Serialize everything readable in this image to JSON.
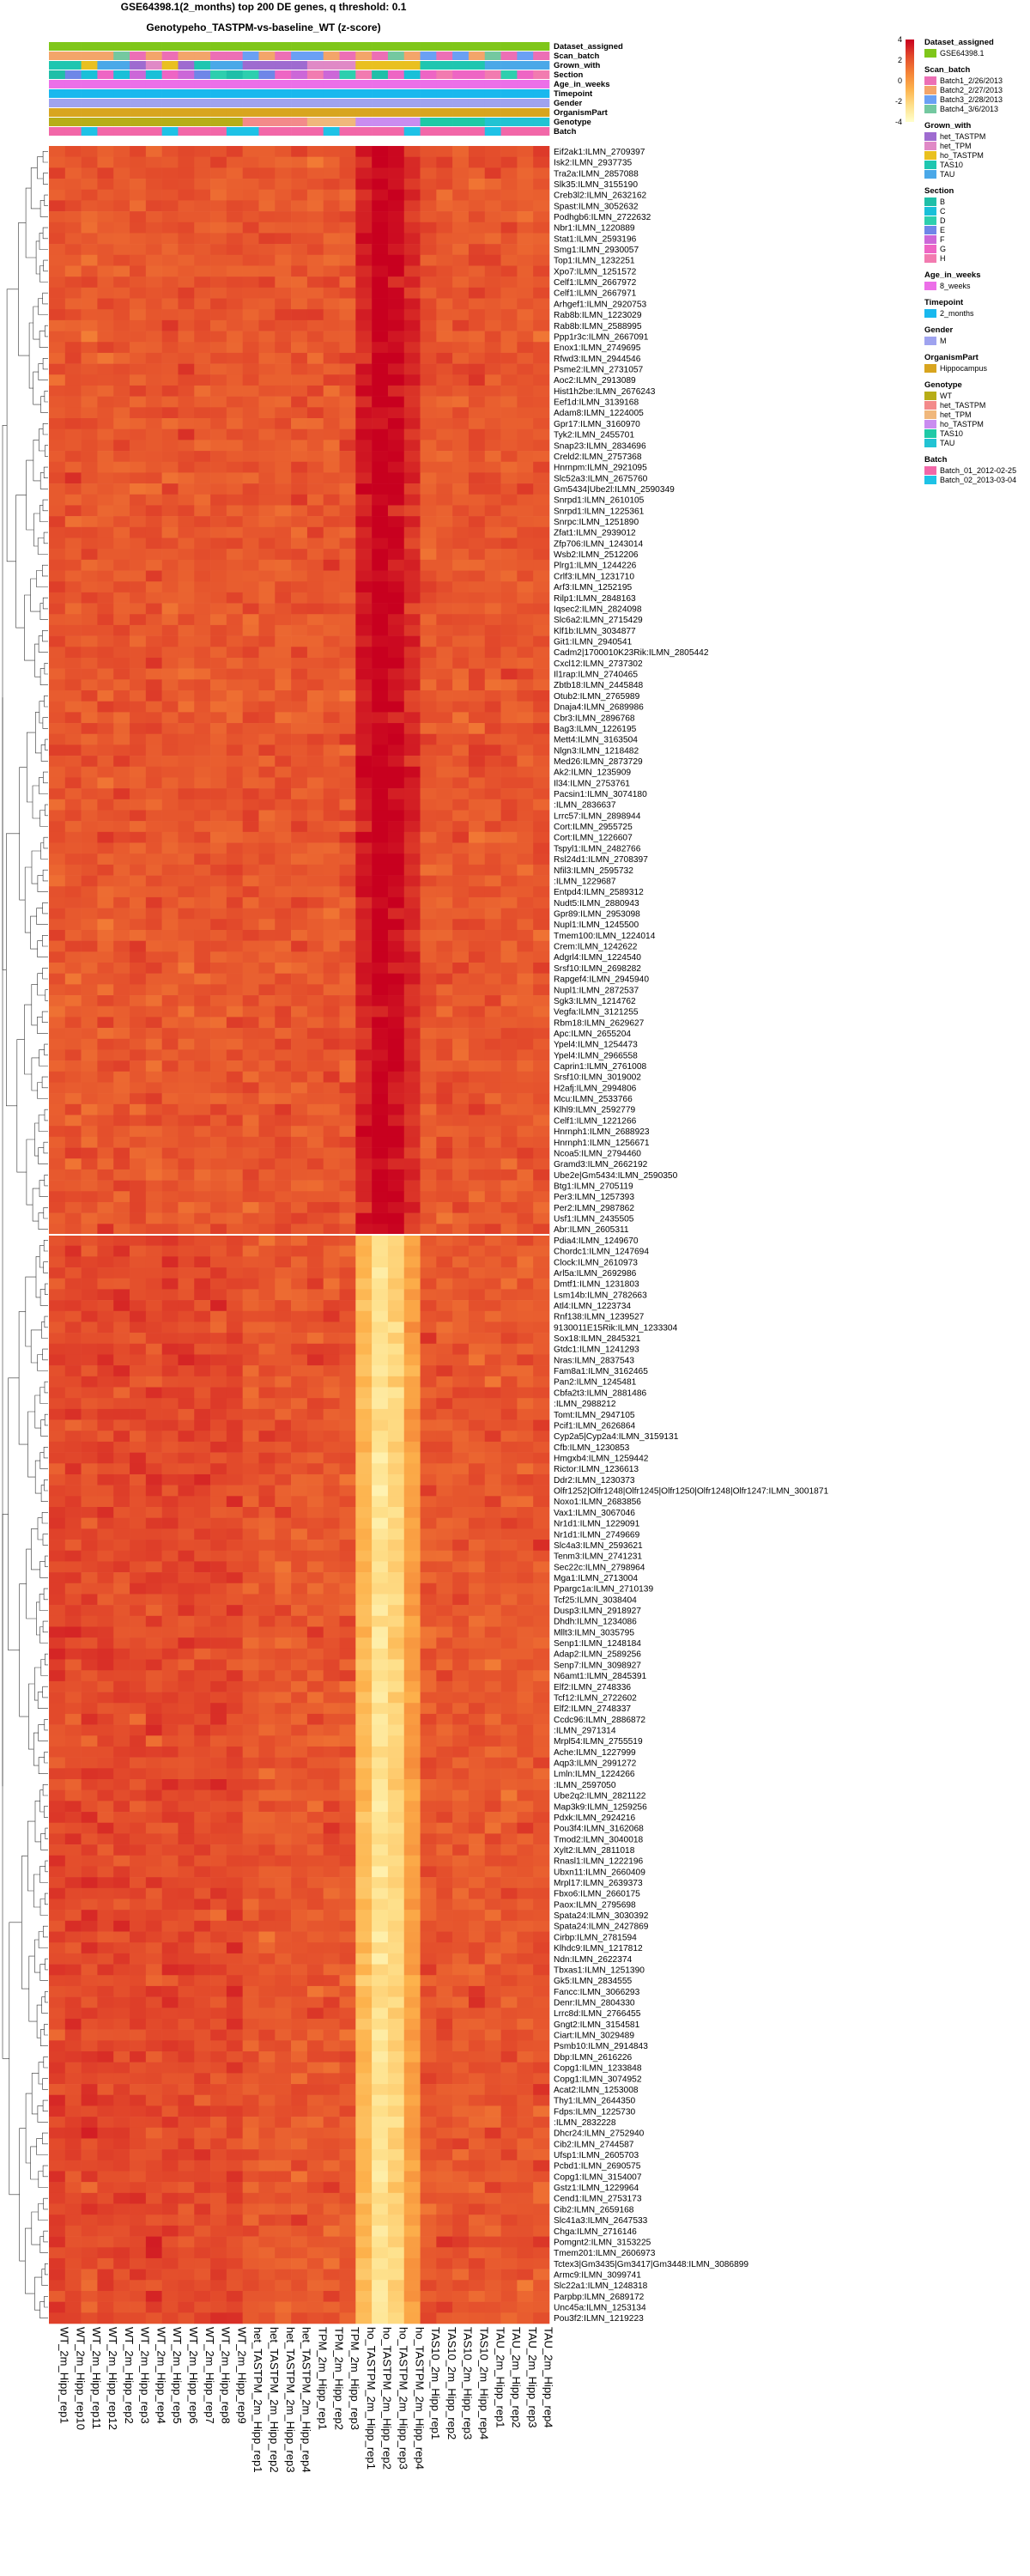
{
  "chart_data": {
    "type": "heatmap",
    "title": "GSE64398.1(2_months) top 200 DE genes, q threshold: 0.1",
    "subtitle": "Genotypeho_TASTPM-vs-baseline_WT  (z-score)",
    "color_scale": {
      "ticks": [
        4,
        2,
        0,
        -2,
        -4
      ],
      "range": [
        -4,
        4
      ],
      "colors": [
        "#c8001f",
        "#e2492b",
        "#f48236",
        "#fdb24c",
        "#fee08b",
        "#ffffcc"
      ]
    },
    "samples": [
      "WT_2m_Hipp_rep1",
      "WT_2m_Hipp_rep10",
      "WT_2m_Hipp_rep11",
      "WT_2m_Hipp_rep12",
      "WT_2m_Hipp_rep2",
      "WT_2m_Hipp_rep3",
      "WT_2m_Hipp_rep4",
      "WT_2m_Hipp_rep5",
      "WT_2m_Hipp_rep6",
      "WT_2m_Hipp_rep7",
      "WT_2m_Hipp_rep8",
      "WT_2m_Hipp_rep9",
      "het_TASTPM_2m_Hipp_rep1",
      "het_TASTPM_2m_Hipp_rep2",
      "het_TASTPM_2m_Hipp_rep3",
      "het_TASTPM_2m_Hipp_rep4",
      "TPM_2m_Hipp_rep1",
      "TPM_2m_Hipp_rep2",
      "TPM_2m_Hipp_rep3",
      "ho_TASTPM_2m_Hipp_rep1",
      "ho_TASTPM_2m_Hipp_rep2",
      "ho_TASTPM_2m_Hipp_rep3",
      "ho_TASTPM_2m_Hipp_rep4",
      "TAS10_2m_Hipp_rep1",
      "TAS10_2m_Hipp_rep2",
      "TAS10_2m_Hipp_rep3",
      "TAS10_2m_Hipp_rep4",
      "TAU_2m_Hipp_rep1",
      "TAU_2m_Hipp_rep2",
      "TAU_2m_Hipp_rep3",
      "TAU_2m_Hipp_rep4"
    ],
    "sample_groups": [
      {
        "name": "WT",
        "cols": [
          0,
          1,
          2,
          3,
          4,
          5,
          6,
          7,
          8,
          9,
          10,
          11
        ]
      },
      {
        "name": "het_TASTPM",
        "cols": [
          12,
          13,
          14,
          15
        ]
      },
      {
        "name": "TPM",
        "cols": [
          16,
          17,
          18
        ]
      },
      {
        "name": "ho_TASTPM",
        "cols": [
          19,
          20,
          21,
          22
        ]
      },
      {
        "name": "TAS10",
        "cols": [
          23,
          24,
          25,
          26
        ]
      },
      {
        "name": "TAU",
        "cols": [
          27,
          28,
          29,
          30
        ]
      }
    ],
    "annotation_tracks": [
      {
        "name": "Dataset_assigned",
        "values": [
          "GSE64398.1"
        ]
      },
      {
        "name": "Scan_batch",
        "values": [
          "Batch1_2/26/2013",
          "Batch2_2/27/2013",
          "Batch3_2/28/2013",
          "Batch4_3/6/2013"
        ]
      },
      {
        "name": "Grown_with",
        "values": [
          "het_TASTPM",
          "het_TPM",
          "ho_TASTPM",
          "TAS10",
          "TAU"
        ]
      },
      {
        "name": "Section",
        "values": [
          "B",
          "C",
          "D",
          "E",
          "F",
          "G",
          "H"
        ]
      },
      {
        "name": "Age_in_weeks",
        "values": [
          "8_weeks"
        ]
      },
      {
        "name": "Timepoint",
        "values": [
          "2_months"
        ]
      },
      {
        "name": "Gender",
        "values": [
          "M"
        ]
      },
      {
        "name": "OrganismPart",
        "values": [
          "Hippocampus"
        ]
      },
      {
        "name": "Genotype",
        "values": [
          "WT",
          "het_TASTPM",
          "het_TPM",
          "ho_TASTPM",
          "TAS10",
          "TAU"
        ]
      },
      {
        "name": "Batch",
        "values": [
          "Batch_01_2012-02-25",
          "Batch_02_2013-03-04"
        ]
      }
    ],
    "row_split_after": 99,
    "genes_up": [
      "Eif2ak1:ILMN_2709397",
      "Isk2:ILMN_2937735",
      "Tra2a:ILMN_2857088",
      "Slk35:ILMN_3155190",
      "Creb3l2:ILMN_2632162",
      "Spast:ILMN_3052632",
      "Podhgb6:ILMN_2722632",
      "Nbr1:ILMN_1220889",
      "Stat1:ILMN_2593196",
      "Smg1:ILMN_2930057",
      "Top1:ILMN_1232251",
      "Xpo7:ILMN_1251572",
      "Celf1:ILMN_2667972",
      "Celf1:ILMN_2667971",
      "Arhgef1:ILMN_2920753",
      "Rab8b:ILMN_1223029",
      "Rab8b:ILMN_2588995",
      "Ppp1r3c:ILMN_2667091",
      "Enox1:ILMN_2749695",
      "Rfwd3:ILMN_2944546",
      "Psme2:ILMN_2731057",
      "Aoc2:ILMN_2913089",
      "Hist1h2be:ILMN_2676243",
      "Eef1d:ILMN_3139168",
      "Adam8:ILMN_1224005",
      "Gpr17:ILMN_3160970",
      "Tyk2:ILMN_2455701",
      "Snap23:ILMN_2834696",
      "Creld2:ILMN_2757368",
      "Hnrnpm:ILMN_2921095",
      "Slc52a3:ILMN_2675760",
      "Gm5434|Ube2l:ILMN_2590349",
      "Snrpd1:ILMN_2610105",
      "Snrpd1:ILMN_1225361",
      "Snrpc:ILMN_1251890",
      "Zfat1:ILMN_2939012",
      "Zfp706:ILMN_1243014",
      "Wsb2:ILMN_2512206",
      "Plrg1:ILMN_1244226",
      "Crlf3:ILMN_1231710",
      "Arf3:ILMN_1252195",
      "Rilp1:ILMN_2848163",
      "Iqsec2:ILMN_2824098",
      "Slc6a2:ILMN_2715429",
      "Klf1b:ILMN_3034877",
      "Git1:ILMN_2940541",
      "Cadm2|1700010K23Rik:ILMN_2805442",
      "Cxcl12:ILMN_2737302",
      "Il1rap:ILMN_2740465",
      "Zbtb18:ILMN_2445848",
      "Otub2:ILMN_2765989",
      "Dnaja4:ILMN_2689986",
      "Cbr3:ILMN_2896768",
      "Bag3:ILMN_1226195",
      "Mett4:ILMN_3163504",
      "Nlgn3:ILMN_1218482",
      "Med26:ILMN_2873729",
      "Ak2:ILMN_1235909",
      "Il34:ILMN_2753761",
      "Pacsin1:ILMN_3074180",
      ":ILMN_2836637",
      "Lrrc57:ILMN_2898944",
      "Cort:ILMN_2955725",
      "Cort:ILMN_1226607",
      "Tspyl1:ILMN_2482766",
      "Rsl24d1:ILMN_2708397",
      "Nfil3:ILMN_2595732",
      ":ILMN_1229687",
      "Entpd4:ILMN_2589312",
      "Nudt5:ILMN_2880943",
      "Gpr89:ILMN_2953098",
      "Nupl1:ILMN_1245500",
      "Tmem100:ILMN_1224014",
      "Crem:ILMN_1242622",
      "Adgrl4:ILMN_1224540",
      "Srsf10:ILMN_2698282",
      "Rapgef4:ILMN_2945940",
      "Nupl1:ILMN_2872537",
      "Sgk3:ILMN_1214762",
      "Vegfa:ILMN_3121255",
      "Rbm18:ILMN_2629627",
      "Apc:ILMN_2655204",
      "Ypel4:ILMN_1254473",
      "Ypel4:ILMN_2966558",
      "Caprin1:ILMN_2761008",
      "Srsf10:ILMN_3019002",
      "H2afj:ILMN_2994806",
      "Mcu:ILMN_2533766",
      "Klhl9:ILMN_2592779",
      "Celf1:ILMN_1221266",
      "Hnrnph1:ILMN_2688923",
      "Hnrnph1:ILMN_1256671",
      "Ncoa5:ILMN_2794460",
      "Gramd3:ILMN_2662192",
      "Ube2e|Gm5434:ILMN_2590350",
      "Btg1:ILMN_2705119",
      "Per3:ILMN_1257393",
      "Per2:ILMN_2987862",
      "Usf1:ILMN_2435505",
      "Abr:ILMN_2605311"
    ],
    "genes_down": [
      "Pdia4:ILMN_1249670",
      "Chordc1:ILMN_1247694",
      "Clock:ILMN_2610973",
      "Arl5a:ILMN_2692986",
      "Dmtf1:ILMN_1231803",
      "Lsm14b:ILMN_2782663",
      "Atl4:ILMN_1223734",
      "Rnf138:ILMN_1239527",
      "9130011E15Rik:ILMN_1233304",
      "Sox18:ILMN_2845321",
      "Gtdc1:ILMN_1241293",
      "Nras:ILMN_2837543",
      "Fam8a1:ILMN_3162465",
      "Pan2:ILMN_1245481",
      "Cbfa2t3:ILMN_2881486",
      ":ILMN_2988212",
      "Tomt:ILMN_2947105",
      "Pcif1:ILMN_2626864",
      "Cyp2a5|Cyp2a4:ILMN_3159131",
      "Cfb:ILMN_1230853",
      "Hmgxb4:ILMN_1259442",
      "Rictor:ILMN_1236613",
      "Ddr2:ILMN_1230373",
      "Olfr1252|Olfr1248|Olfr1245|Olfr1250|Olfr1248|Olfr1247:ILMN_3001871",
      "Noxo1:ILMN_2683856",
      "Vax1:ILMN_3067046",
      "Nr1d1:ILMN_1229091",
      "Nr1d1:ILMN_2749669",
      "Slc4a3:ILMN_2593621",
      "Tenm3:ILMN_2741231",
      "Sec22c:ILMN_2798964",
      "Mga1:ILMN_2713004",
      "Ppargc1a:ILMN_2710139",
      "Tcf25:ILMN_3038404",
      "Dusp3:ILMN_2918927",
      "Dhdh:ILMN_1234086",
      "Mllt3:ILMN_3035795",
      "Senp1:ILMN_1248184",
      "Adap2:ILMN_2589256",
      "Senp7:ILMN_3098927",
      "N6amt1:ILMN_2845391",
      "Elf2:ILMN_2748336",
      "Tcf12:ILMN_2722602",
      "Elf2:ILMN_2748337",
      "Ccdc96:ILMN_2886872",
      ":ILMN_2971314",
      "Mrpl54:ILMN_2755519",
      "Ache:ILMN_1227999",
      "Aqp3:ILMN_2991272",
      "Lmln:ILMN_1224266",
      ":ILMN_2597050",
      "Ube2q2:ILMN_2821122",
      "Map3k9:ILMN_1259256",
      "Pdxk:ILMN_2924216",
      "Pou3f4:ILMN_3162068",
      "Tmod2:ILMN_3040018",
      "Xylt2:ILMN_2811018",
      "Rnasl1:ILMN_1222196",
      "Ubxn11:ILMN_2660409",
      "Mrpl17:ILMN_2639373",
      "Fbxo6:ILMN_2660175",
      "Paox:ILMN_2795698",
      "Spata24:ILMN_3030392",
      "Spata24:ILMN_2427869",
      "Cirbp:ILMN_2781594",
      "Klhdc9:ILMN_1217812",
      "Ndn:ILMN_2622374",
      "Tbxas1:ILMN_1251390",
      "Gk5:ILMN_2834555",
      "Fancc:ILMN_3066293",
      "Denr:ILMN_2804330",
      "Lrrc8d:ILMN_2766455",
      "Gngt2:ILMN_3154581",
      "Ciart:ILMN_3029489",
      "Psmb10:ILMN_2914843",
      "Dbp:ILMN_2616226",
      "Copg1:ILMN_1233848",
      "Copg1:ILMN_3074952",
      "Acat2:ILMN_1253008",
      "Thy1:ILMN_2644350",
      "Fdps:ILMN_1225730",
      ":ILMN_2832228",
      "Dhcr24:ILMN_2752940",
      "Cib2:ILMN_2744587",
      "Ufsp1:ILMN_2605703",
      "Pcbd1:ILMN_2690575",
      "Copg1:ILMN_3154007",
      "Gstz1:ILMN_1229964",
      "Cend1:ILMN_2753173",
      "Cib2:ILMN_2659168",
      "Slc41a3:ILMN_2647533",
      "Chga:ILMN_2716146",
      "Pomgnt2:ILMN_3153225",
      "Tmem201:ILMN_2606973",
      "Tctex3|Gm3435|Gm3417|Gm3448:ILMN_3086899",
      "Armc9:ILMN_3099741",
      "Slc22a1:ILMN_1248318",
      "Parpbp:ILMN_2689172",
      "Unc45a:ILMN_1253134",
      "Pou3f2:ILMN_1219223"
    ]
  }
}
